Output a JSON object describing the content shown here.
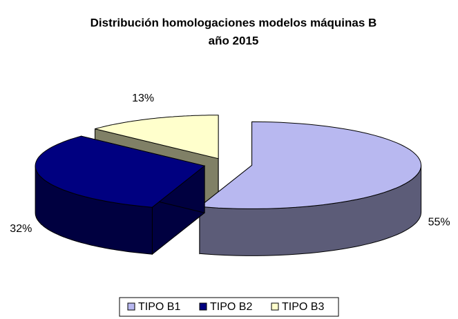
{
  "chart_data": {
    "type": "pie",
    "title": [
      "Distribución homologaciones modelos máquinas B",
      "año 2015"
    ],
    "categories": [
      "TIPO B1",
      "TIPO B2",
      "TIPO B3"
    ],
    "values": [
      55,
      32,
      13
    ],
    "value_labels": [
      "55%",
      "32%",
      "13%"
    ],
    "colors": [
      "#b8b8f0",
      "#000080",
      "#ffffcc"
    ],
    "legend": "bottom"
  }
}
